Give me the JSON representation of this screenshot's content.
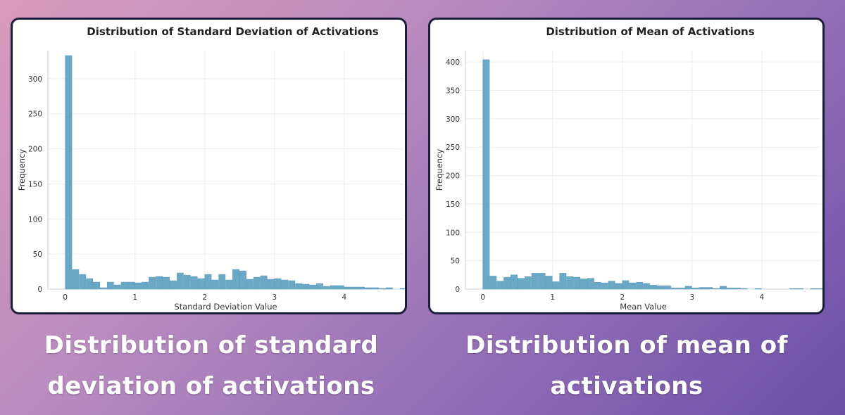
{
  "captions": {
    "left": [
      "Distribution of standard",
      "deviation of activations"
    ],
    "right": [
      "Distribution of mean of",
      "activations"
    ]
  },
  "colors": {
    "bar": "#6aa9c6",
    "panel_border": "#1b1e3a"
  },
  "chart_data": [
    {
      "type": "bar",
      "title": "Distribution of Standard Deviation of Activations",
      "xlabel": "Standard Deviation Value",
      "ylabel": "Frequency",
      "xlim": [
        -0.25,
        4.85
      ],
      "ylim": [
        0,
        340
      ],
      "xticks": [
        0,
        1,
        2,
        3,
        4
      ],
      "yticks": [
        0,
        50,
        100,
        150,
        200,
        250,
        300
      ],
      "grid": true,
      "bin_start": 0,
      "bin_width": 0.1,
      "values": [
        333,
        28,
        21,
        15,
        10,
        2,
        10,
        6,
        10,
        10,
        9,
        10,
        17,
        18,
        17,
        12,
        23,
        20,
        18,
        15,
        21,
        13,
        21,
        13,
        28,
        26,
        14,
        17,
        19,
        14,
        15,
        13,
        12,
        8,
        7,
        6,
        8,
        4,
        5,
        5,
        3,
        3,
        3,
        2,
        2,
        1,
        2,
        0,
        1,
        1
      ]
    },
    {
      "type": "bar",
      "title": "Distribution of Mean of Activations",
      "xlabel": "Mean Value",
      "ylabel": "Frequency",
      "xlim": [
        -0.25,
        4.85
      ],
      "ylim": [
        0,
        420
      ],
      "xticks": [
        0,
        1,
        2,
        3,
        4
      ],
      "yticks": [
        0,
        50,
        100,
        150,
        200,
        250,
        300,
        350,
        400
      ],
      "grid": true,
      "bin_start": 0,
      "bin_width": 0.1,
      "values": [
        404,
        23,
        14,
        21,
        25,
        19,
        22,
        28,
        28,
        23,
        13,
        28,
        22,
        21,
        18,
        19,
        12,
        11,
        14,
        10,
        15,
        11,
        12,
        10,
        7,
        6,
        6,
        2,
        2,
        5,
        2,
        3,
        3,
        1,
        5,
        2,
        2,
        1,
        0,
        1,
        0,
        0,
        0,
        0,
        1,
        1,
        0,
        1,
        1,
        0
      ]
    }
  ]
}
